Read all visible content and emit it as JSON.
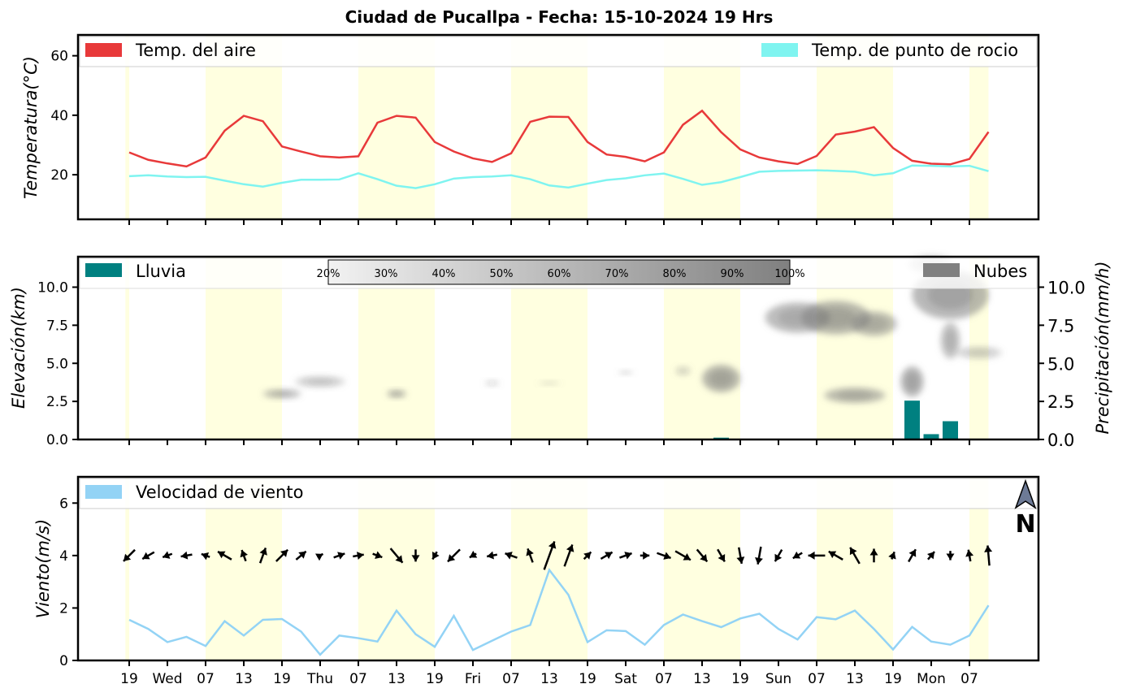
{
  "title": "Ciudad de Pucallpa   -   Fecha: 15-10-2024 19 Hrs",
  "x_ticks": [
    "19",
    "Wed",
    "07",
    "13",
    "19",
    "Thu",
    "07",
    "13",
    "19",
    "Fri",
    "07",
    "13",
    "19",
    "Sat",
    "07",
    "13",
    "19",
    "Sun",
    "07",
    "13",
    "19",
    "Mon",
    "07"
  ],
  "colors": {
    "temp_air": "#e8393a",
    "dew_point": "#7ff4f0",
    "rain": "#008080",
    "clouds": "#808080",
    "wind_speed": "#93d3f5",
    "day_shade": "#ffffe0"
  },
  "chart_data": [
    {
      "type": "line",
      "ylabel": "Temperatura(°C)",
      "ylim": [
        5,
        67
      ],
      "yticks": [
        "20",
        "40",
        "60"
      ],
      "x_step_hours": 3,
      "legend_position": "top",
      "series": [
        {
          "name": "Temp. del aire",
          "values": [
            27.5,
            25,
            23.8,
            22.8,
            25.8,
            34.8,
            39.8,
            38,
            29.5,
            27.8,
            26.2,
            25.8,
            26.2,
            37.5,
            39.8,
            39.2,
            31,
            27.8,
            25.5,
            24.3,
            27.2,
            37.8,
            39.5,
            39.4,
            31,
            26.8,
            26,
            24.5,
            27.5,
            36.8,
            41.5,
            34.3,
            28.5,
            25.8,
            24.5,
            23.6,
            26.3,
            33.5,
            34.5,
            36,
            29,
            24.7,
            23.7,
            23.5,
            25.3,
            34.4
          ]
        },
        {
          "name": "Temp. de punto de rocio",
          "values": [
            19.5,
            19.8,
            19.4,
            19.2,
            19.3,
            18,
            16.8,
            16,
            17.3,
            18.3,
            18.3,
            18.4,
            20.5,
            18.5,
            16.3,
            15.5,
            16.8,
            18.7,
            19.2,
            19.4,
            19.8,
            18.5,
            16.4,
            15.7,
            17,
            18.2,
            18.8,
            19.8,
            20.4,
            18.6,
            16.6,
            17.5,
            19.2,
            21,
            21.3,
            21.4,
            21.5,
            21.3,
            21,
            19.8,
            20.5,
            23.1,
            23,
            22.8,
            23,
            21.2
          ]
        }
      ]
    },
    {
      "type": "bar",
      "ylabel_left": "Elevación(km)",
      "ylabel_right": "Precipitación(mm/h)",
      "ylim": [
        0,
        12
      ],
      "yticks_left": [
        "0.0",
        "2.5",
        "5.0",
        "7.5",
        "10.0"
      ],
      "yticks_right": [
        "0.0",
        "2.5",
        "5.0",
        "7.5",
        "10.0"
      ],
      "legend": [
        "Lluvia",
        "Nubes"
      ],
      "colorbar_labels": [
        "20%",
        "30%",
        "40%",
        "50%",
        "60%",
        "70%",
        "80%",
        "90%",
        "100%"
      ],
      "series": [
        {
          "name": "Lluvia",
          "values": [
            0,
            0,
            0,
            0,
            0,
            0,
            0,
            0,
            0,
            0,
            0,
            0,
            0.05,
            0.02,
            0,
            0,
            0,
            0,
            0,
            0,
            0,
            0,
            0,
            0,
            0,
            0,
            0,
            0,
            0,
            0,
            0,
            0.12,
            0.03,
            0,
            0,
            0,
            0,
            0,
            0,
            0.02,
            0,
            2.55,
            0.35,
            1.2,
            0.05,
            0
          ]
        }
      ],
      "cloud_cover": [
        {
          "x": 8,
          "elev": 3.0,
          "rx": 1.0,
          "ry": 0.3,
          "level": 0.45
        },
        {
          "x": 10,
          "elev": 3.8,
          "rx": 1.3,
          "ry": 0.35,
          "level": 0.35
        },
        {
          "x": 14,
          "elev": 3.0,
          "rx": 0.5,
          "ry": 0.25,
          "level": 0.5
        },
        {
          "x": 19,
          "elev": 3.7,
          "rx": 0.4,
          "ry": 0.2,
          "level": 0.2
        },
        {
          "x": 22,
          "elev": 3.7,
          "rx": 0.6,
          "ry": 0.15,
          "level": 0.15
        },
        {
          "x": 26,
          "elev": 4.4,
          "rx": 0.4,
          "ry": 0.15,
          "level": 0.2
        },
        {
          "x": 29,
          "elev": 4.5,
          "rx": 0.4,
          "ry": 0.3,
          "level": 0.25
        },
        {
          "x": 31,
          "elev": 4.0,
          "rx": 1.0,
          "ry": 0.9,
          "level": 0.55
        },
        {
          "x": 35,
          "elev": 8.0,
          "rx": 1.7,
          "ry": 1.0,
          "level": 0.5
        },
        {
          "x": 37,
          "elev": 8.0,
          "rx": 1.8,
          "ry": 1.1,
          "level": 0.55
        },
        {
          "x": 39,
          "elev": 7.6,
          "rx": 1.2,
          "ry": 0.8,
          "level": 0.5
        },
        {
          "x": 38,
          "elev": 2.9,
          "rx": 1.6,
          "ry": 0.5,
          "level": 0.5
        },
        {
          "x": 41,
          "elev": 3.8,
          "rx": 0.6,
          "ry": 1.0,
          "level": 0.55
        },
        {
          "x": 43,
          "elev": 9.5,
          "rx": 2.0,
          "ry": 1.6,
          "level": 0.55
        },
        {
          "x": 43,
          "elev": 6.5,
          "rx": 0.5,
          "ry": 1.2,
          "level": 0.45
        },
        {
          "x": 44.5,
          "elev": 5.7,
          "rx": 1.2,
          "ry": 0.4,
          "level": 0.3
        },
        {
          "x": 42,
          "elev": 11.5,
          "rx": 1.2,
          "ry": 0.6,
          "level": 0.3
        }
      ]
    },
    {
      "type": "line",
      "ylabel": "Viento(m/s)",
      "ylim": [
        0,
        7
      ],
      "yticks": [
        "0",
        "2",
        "4",
        "6"
      ],
      "north_label": "N",
      "legend_position": "top-left",
      "series": [
        {
          "name": "Velocidad de viento",
          "values": [
            1.55,
            1.2,
            0.7,
            0.9,
            0.55,
            1.5,
            0.95,
            1.55,
            1.58,
            1.1,
            0.22,
            0.95,
            0.85,
            0.72,
            1.9,
            1.0,
            0.52,
            1.7,
            0.4,
            0.75,
            1.1,
            1.35,
            3.45,
            2.5,
            0.7,
            1.15,
            1.12,
            0.6,
            1.35,
            1.75,
            1.5,
            1.27,
            1.6,
            1.78,
            1.2,
            0.8,
            1.65,
            1.57,
            1.9,
            1.2,
            0.42,
            1.28,
            0.72,
            0.6,
            0.95,
            2.1
          ]
        }
      ],
      "wind_direction_deg": [
        45,
        60,
        70,
        80,
        110,
        120,
        160,
        200,
        225,
        230,
        240,
        250,
        260,
        290,
        320,
        0,
        30,
        45,
        60,
        80,
        110,
        160,
        200,
        200,
        225,
        240,
        250,
        270,
        290,
        300,
        320,
        330,
        350,
        10,
        30,
        60,
        90,
        120,
        150,
        180,
        200,
        210,
        220,
        0,
        170,
        175
      ]
    }
  ]
}
